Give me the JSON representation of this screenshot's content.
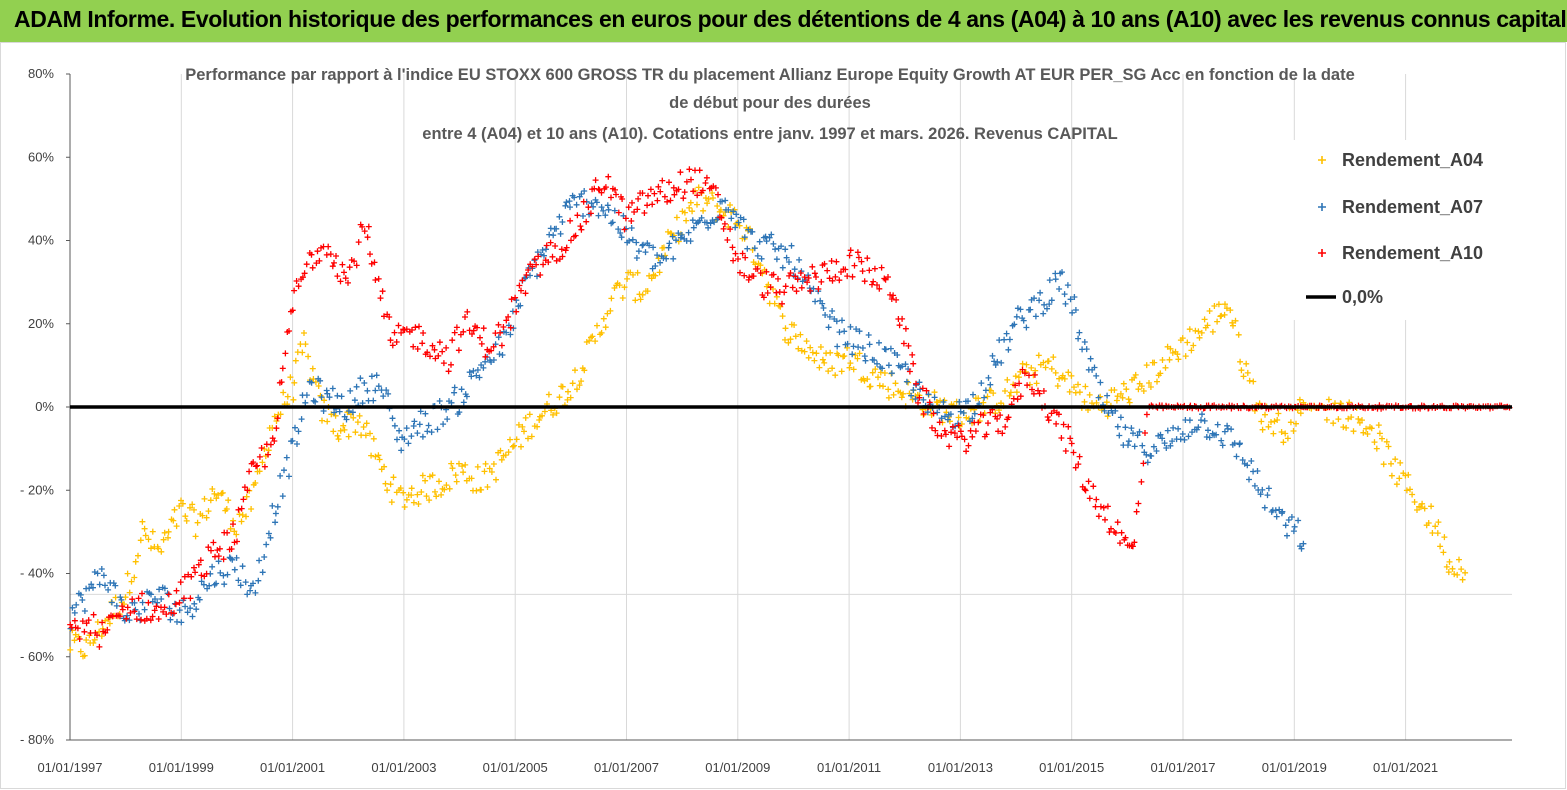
{
  "header": {
    "title": "ADAM Informe. Evolution historique des performances en euros pour des détentions de 4 ans (A04) à 10 ans (A10) avec les revenus connus capitalisés",
    "background_color": "#92d050"
  },
  "chart_data": {
    "type": "scatter",
    "title_lines": [
      "Performance par rapport à l'indice EU STOXX 600 GROSS TR  du placement Allianz Europe Equity Growth AT EUR PER_SG Acc en fonction de la date",
      "de début pour des durées",
      "entre 4 (A04) et 10 ans (A10). Cotations entre janv. 1997 et mars. 2026. Revenus CAPITAL"
    ],
    "ylim": [
      -80,
      80
    ],
    "ytick_labels": [
      "80%",
      "60%",
      "40%",
      "20%",
      "0%",
      "- 20%",
      "- 40%",
      "- 60%",
      "- 80%"
    ],
    "xlim": [
      1997.0,
      2023.0
    ],
    "xtick_labels": [
      "01/01/1997",
      "01/01/1999",
      "01/01/2001",
      "01/01/2003",
      "01/01/2005",
      "01/01/2007",
      "01/01/2009",
      "01/01/2011",
      "01/01/2013",
      "01/01/2015",
      "01/01/2017",
      "01/01/2019",
      "01/01/2021"
    ],
    "legend": [
      {
        "name": "Rendement_A04",
        "color": "#ffc000",
        "marker": "+"
      },
      {
        "name": "Rendement_A07",
        "color": "#2e75b6",
        "marker": "+"
      },
      {
        "name": "Rendement_A10",
        "color": "#ff0000",
        "marker": "+"
      },
      {
        "name": "0,0%",
        "color": "#000000",
        "marker": "line"
      }
    ],
    "series": [
      {
        "name": "Rendement_A04",
        "color": "#ffc000",
        "x": [
          1997.0,
          1997.3,
          1997.6,
          1998.0,
          1998.3,
          1998.6,
          1999.0,
          1999.3,
          1999.6,
          2000.0,
          2000.3,
          2000.6,
          2001.0,
          2001.2,
          2001.5,
          2001.8,
          2002.2,
          2002.6,
          2002.9,
          2003.3,
          2003.7,
          2004.0,
          2004.4,
          2004.8,
          2005.2,
          2005.6,
          2006.0,
          2006.4,
          2006.7,
          2007.0,
          2007.3,
          2007.6,
          2008.0,
          2008.3,
          2008.6,
          2009.0,
          2009.4,
          2009.8,
          2010.2,
          2010.6,
          2011.0,
          2011.4,
          2011.8,
          2012.2,
          2012.6,
          2013.0,
          2013.4,
          2013.8,
          2014.2,
          2014.6,
          2015.0,
          2015.4,
          2015.8,
          2016.2,
          2016.6,
          2017.0,
          2017.3,
          2017.6,
          2017.8,
          2018.1,
          2018.4,
          2018.8,
          2019.2,
          2019.6,
          2020.0,
          2020.4,
          2020.8,
          2021.2,
          2021.6,
          2021.8,
          2022.1
        ],
        "y": [
          -57,
          -58,
          -52,
          -45,
          -30,
          -35,
          -25,
          -28,
          -20,
          -28,
          -22,
          -5,
          5,
          15,
          0,
          -5,
          -3,
          -15,
          -22,
          -20,
          -18,
          -15,
          -18,
          -12,
          -5,
          0,
          5,
          15,
          25,
          30,
          28,
          35,
          45,
          50,
          48,
          45,
          35,
          20,
          15,
          10,
          12,
          8,
          5,
          2,
          0,
          -2,
          0,
          3,
          8,
          10,
          5,
          0,
          2,
          5,
          10,
          15,
          18,
          22,
          25,
          10,
          -2,
          -5,
          0,
          0,
          -2,
          -5,
          -15,
          -22,
          -30,
          -38,
          -38
        ]
      },
      {
        "name": "Rendement_A07",
        "color": "#2e75b6",
        "x": [
          1997.0,
          1997.3,
          1997.6,
          1998.0,
          1998.3,
          1998.6,
          1999.0,
          1999.3,
          1999.6,
          2000.0,
          2000.3,
          2000.6,
          2001.0,
          2001.3,
          2001.6,
          2002.0,
          2002.3,
          2002.6,
          2002.9,
          2003.2,
          2003.6,
          2004.0,
          2004.4,
          2004.8,
          2005.2,
          2005.6,
          2006.0,
          2006.4,
          2006.8,
          2007.2,
          2007.6,
          2008.0,
          2008.4,
          2008.8,
          2009.2,
          2009.6,
          2010.0,
          2010.4,
          2010.8,
          2011.2,
          2011.6,
          2012.0,
          2012.4,
          2012.8,
          2013.2,
          2013.6,
          2014.0,
          2014.4,
          2014.8,
          2015.0,
          2015.3,
          2015.6,
          2016.0,
          2016.4,
          2016.8,
          2017.2,
          2017.6,
          2018.0,
          2018.4,
          2018.8,
          2019.2
        ],
        "y": [
          -50,
          -45,
          -40,
          -50,
          -48,
          -45,
          -50,
          -45,
          -40,
          -38,
          -45,
          -28,
          -10,
          5,
          2,
          0,
          5,
          5,
          -8,
          -5,
          -2,
          2,
          10,
          15,
          30,
          40,
          48,
          50,
          45,
          38,
          35,
          40,
          45,
          50,
          40,
          38,
          35,
          25,
          18,
          15,
          12,
          8,
          0,
          -2,
          0,
          10,
          20,
          25,
          30,
          25,
          10,
          0,
          -8,
          -10,
          -8,
          -3,
          -5,
          -10,
          -20,
          -28,
          -32
        ]
      },
      {
        "name": "Rendement_A10",
        "color": "#ff0000",
        "x": [
          1997.0,
          1997.3,
          1997.6,
          1998.0,
          1998.3,
          1998.6,
          1999.0,
          1999.3,
          1999.6,
          2000.0,
          2000.3,
          2000.6,
          2000.8,
          2001.0,
          2001.3,
          2001.6,
          2002.0,
          2002.3,
          2002.5,
          2002.8,
          2003.1,
          2003.5,
          2003.8,
          2004.1,
          2004.5,
          2004.8,
          2005.1,
          2005.5,
          2005.9,
          2006.2,
          2006.6,
          2007.0,
          2007.4,
          2007.8,
          2008.2,
          2008.6,
          2009.0,
          2009.4,
          2009.8,
          2010.2,
          2010.6,
          2011.0,
          2011.4,
          2011.8,
          2012.2,
          2012.6,
          2013.0,
          2013.4,
          2013.8,
          2014.2,
          2014.6,
          2015.0,
          2015.3,
          2015.6,
          2015.9,
          2016.1,
          2016.4,
          2017.0,
          2018.0,
          2019.0,
          2020.0,
          2021.0,
          2022.0,
          2022.9
        ],
        "y": [
          -55,
          -52,
          -55,
          -48,
          -48,
          -50,
          -45,
          -40,
          -35,
          -30,
          -15,
          -10,
          5,
          25,
          35,
          40,
          30,
          45,
          30,
          15,
          18,
          15,
          12,
          20,
          15,
          18,
          28,
          35,
          40,
          45,
          55,
          45,
          50,
          52,
          55,
          50,
          35,
          30,
          28,
          30,
          32,
          35,
          32,
          28,
          5,
          -5,
          -8,
          -5,
          -3,
          8,
          0,
          -10,
          -20,
          -25,
          -32,
          -35,
          0,
          0,
          0,
          0,
          0,
          0,
          0,
          0
        ]
      }
    ],
    "reference_line": {
      "label": "0,0%",
      "value": 0,
      "color": "#000000"
    }
  }
}
